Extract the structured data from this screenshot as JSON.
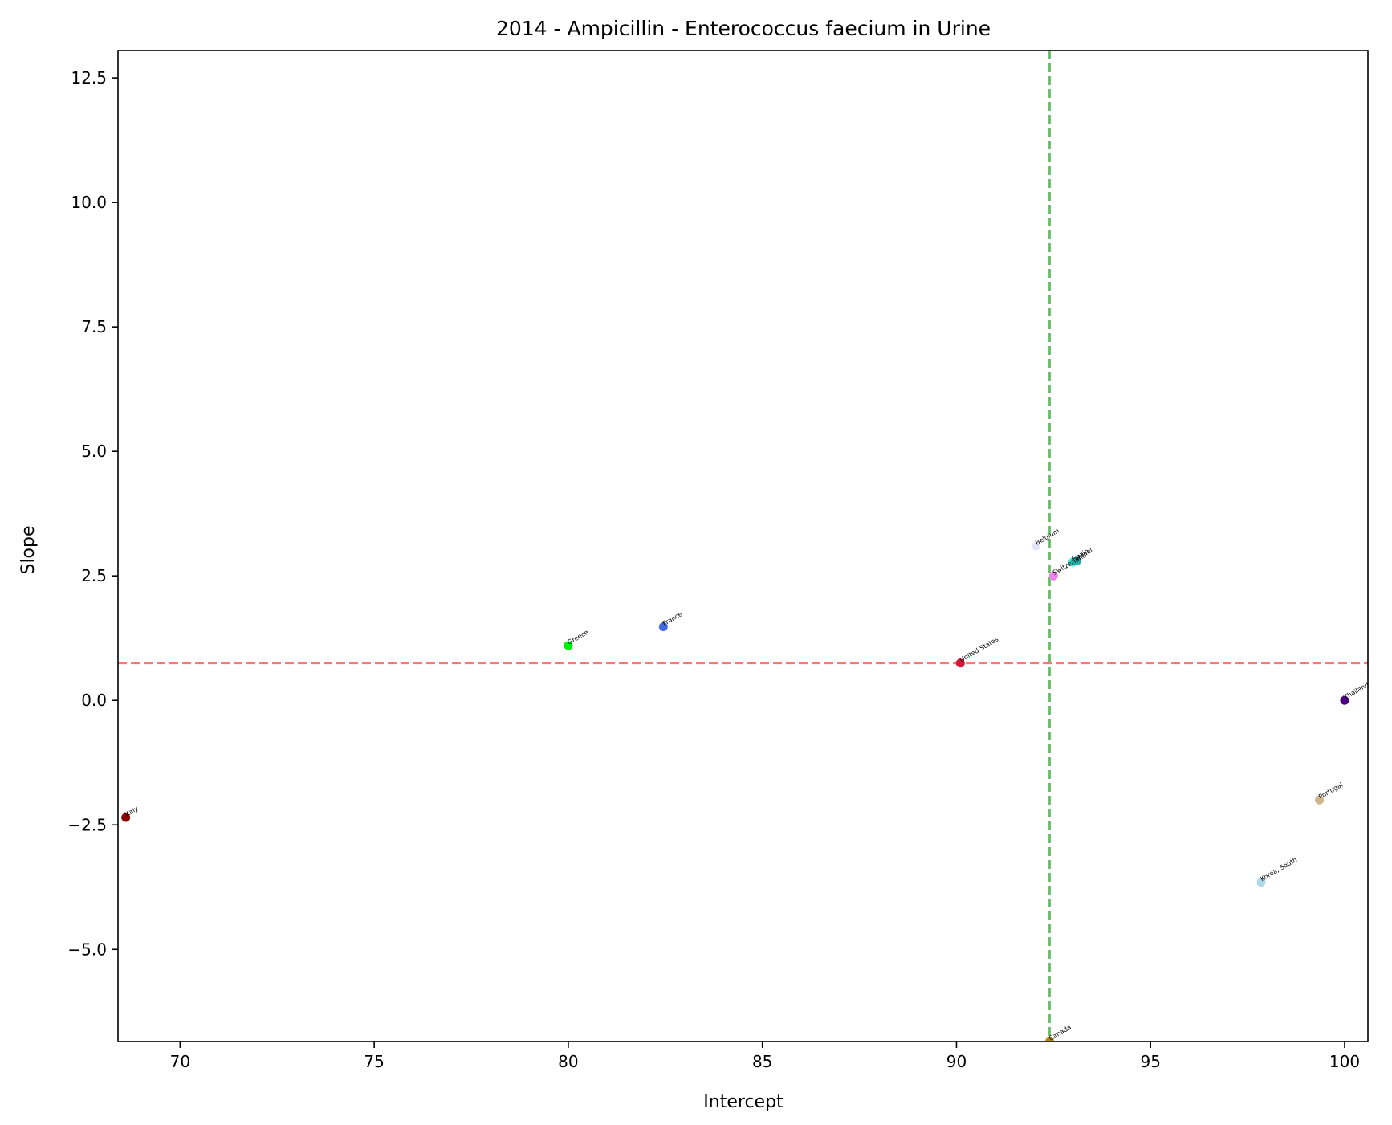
{
  "chart_data": {
    "type": "scatter",
    "title": "2014 - Ampicillin - Enterococcus faecium in Urine",
    "xlabel": "Intercept",
    "ylabel": "Slope",
    "xlim": [
      68.4,
      100.6
    ],
    "ylim": [
      -6.85,
      13.05
    ],
    "xticks": [
      70,
      75,
      80,
      85,
      90,
      95,
      100
    ],
    "xtick_labels": [
      "70",
      "75",
      "80",
      "85",
      "90",
      "95",
      "100"
    ],
    "yticks": [
      -5.0,
      -2.5,
      0.0,
      2.5,
      5.0,
      7.5,
      10.0,
      12.5
    ],
    "ytick_labels": [
      "−5.0",
      "−2.5",
      "0.0",
      "2.5",
      "5.0",
      "7.5",
      "10.0",
      "12.5"
    ],
    "grid": false,
    "reference_lines": [
      {
        "orientation": "vertical",
        "value": 92.4,
        "color": "#66bb66",
        "style": "dashed"
      },
      {
        "orientation": "horizontal",
        "value": 0.75,
        "color": "#ff7777",
        "style": "dashed"
      }
    ],
    "points": [
      {
        "label": "Italy",
        "x": 68.6,
        "y": -2.35,
        "color": "#8b0000"
      },
      {
        "label": "Greece",
        "x": 80.0,
        "y": 1.1,
        "color": "#00ee00"
      },
      {
        "label": "France",
        "x": 82.45,
        "y": 1.48,
        "color": "#4169e1"
      },
      {
        "label": "United States",
        "x": 90.1,
        "y": 0.75,
        "color": "#dc143c"
      },
      {
        "label": "Belgium",
        "x": 92.05,
        "y": 3.1,
        "color": "#e6e6fa"
      },
      {
        "label": "Switzerland",
        "x": 92.5,
        "y": 2.5,
        "color": "#ee82ee"
      },
      {
        "label": "Spain",
        "x": 93.0,
        "y": 2.78,
        "color": "#40e0d0"
      },
      {
        "label": "Israel",
        "x": 93.1,
        "y": 2.8,
        "color": "#20b2aa"
      },
      {
        "label": "Thailand",
        "x": 100.0,
        "y": 0.0,
        "color": "#4b0082"
      },
      {
        "label": "Portugal",
        "x": 99.35,
        "y": -2.0,
        "color": "#d2b48c"
      },
      {
        "label": "Korea, South",
        "x": 97.85,
        "y": -3.65,
        "color": "#add8e6"
      },
      {
        "label": "Canada",
        "x": 92.4,
        "y": -6.85,
        "color": "#b8860b"
      }
    ]
  }
}
